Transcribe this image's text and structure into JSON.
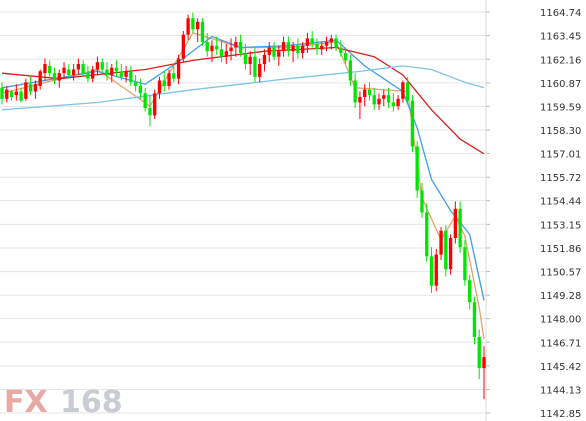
{
  "chart_data": {
    "type": "candlestick",
    "title": "",
    "xlabel": "",
    "ylabel": "",
    "ylim": [
      1142.85,
      1164.74
    ],
    "y_ticks": [
      "1164.74",
      "1163.45",
      "1162.16",
      "1160.87",
      "1159.59",
      "1158.30",
      "1157.01",
      "1155.72",
      "1154.44",
      "1153.15",
      "1151.86",
      "1150.57",
      "1149.28",
      "1148.00",
      "1146.71",
      "1145.42",
      "1144.13",
      "1142.85"
    ],
    "grid": true,
    "legend": "none",
    "colors": {
      "up": "#ff0000",
      "down": "#00e600",
      "ma_fast": "#e8a36b",
      "ma_mid": "#3f9fe8",
      "ma_slow": "#d62020",
      "ma_long": "#7fc4e8"
    },
    "watermark": {
      "fx": "FX",
      "num": "168"
    },
    "candles": [
      [
        1160.6,
        1160.9,
        1159.7,
        1160.0
      ],
      [
        1160.0,
        1160.7,
        1159.8,
        1160.5
      ],
      [
        1160.4,
        1160.5,
        1159.9,
        1160.1
      ],
      [
        1160.2,
        1160.8,
        1159.9,
        1160.4
      ],
      [
        1160.4,
        1160.6,
        1159.8,
        1159.9
      ],
      [
        1160.0,
        1161.1,
        1159.9,
        1160.9
      ],
      [
        1160.8,
        1161.3,
        1160.2,
        1160.4
      ],
      [
        1160.4,
        1161.0,
        1160.0,
        1160.8
      ],
      [
        1160.7,
        1161.6,
        1160.5,
        1161.5
      ],
      [
        1161.4,
        1162.2,
        1161.0,
        1161.9
      ],
      [
        1161.8,
        1162.1,
        1161.2,
        1161.4
      ],
      [
        1161.4,
        1161.7,
        1160.8,
        1161.0
      ],
      [
        1161.0,
        1161.6,
        1160.6,
        1161.4
      ],
      [
        1161.4,
        1162.0,
        1161.1,
        1161.7
      ],
      [
        1161.6,
        1161.9,
        1161.1,
        1161.3
      ],
      [
        1161.3,
        1161.9,
        1161.0,
        1161.6
      ],
      [
        1161.6,
        1162.2,
        1161.3,
        1161.9
      ],
      [
        1161.9,
        1162.1,
        1161.2,
        1161.4
      ],
      [
        1161.4,
        1161.8,
        1160.9,
        1161.1
      ],
      [
        1161.1,
        1161.8,
        1160.9,
        1161.6
      ],
      [
        1161.6,
        1162.3,
        1161.3,
        1162.0
      ],
      [
        1162.0,
        1162.2,
        1161.4,
        1161.6
      ],
      [
        1161.6,
        1162.0,
        1161.0,
        1161.3
      ],
      [
        1161.3,
        1161.9,
        1160.9,
        1161.7
      ],
      [
        1161.7,
        1162.1,
        1161.2,
        1161.5
      ],
      [
        1161.5,
        1161.9,
        1161.0,
        1161.2
      ],
      [
        1161.2,
        1161.8,
        1160.9,
        1161.5
      ],
      [
        1161.5,
        1161.8,
        1160.7,
        1160.9
      ],
      [
        1160.9,
        1161.3,
        1160.4,
        1160.7
      ],
      [
        1160.7,
        1161.1,
        1160.0,
        1160.3
      ],
      [
        1160.3,
        1160.6,
        1159.3,
        1159.5
      ],
      [
        1159.5,
        1160.2,
        1158.5,
        1159.1
      ],
      [
        1159.1,
        1160.5,
        1158.9,
        1160.3
      ],
      [
        1160.3,
        1161.2,
        1160.0,
        1161.0
      ],
      [
        1161.0,
        1161.5,
        1160.4,
        1160.7
      ],
      [
        1160.7,
        1161.6,
        1160.5,
        1161.4
      ],
      [
        1161.4,
        1161.9,
        1160.9,
        1161.1
      ],
      [
        1161.1,
        1162.4,
        1160.8,
        1162.2
      ],
      [
        1162.2,
        1163.7,
        1162.0,
        1163.5
      ],
      [
        1163.5,
        1164.6,
        1163.2,
        1164.4
      ],
      [
        1164.4,
        1164.7,
        1163.6,
        1163.8
      ],
      [
        1163.8,
        1164.4,
        1163.1,
        1164.2
      ],
      [
        1164.2,
        1164.4,
        1162.9,
        1163.1
      ],
      [
        1163.1,
        1163.6,
        1162.3,
        1162.6
      ],
      [
        1162.6,
        1163.2,
        1162.0,
        1162.9
      ],
      [
        1162.9,
        1163.4,
        1162.4,
        1162.7
      ],
      [
        1162.7,
        1163.2,
        1162.0,
        1162.3
      ],
      [
        1162.3,
        1163.0,
        1161.9,
        1162.6
      ],
      [
        1162.6,
        1163.3,
        1162.1,
        1162.8
      ],
      [
        1162.8,
        1163.4,
        1162.3,
        1163.1
      ],
      [
        1163.1,
        1163.5,
        1162.3,
        1162.5
      ],
      [
        1162.5,
        1163.0,
        1161.6,
        1161.9
      ],
      [
        1161.9,
        1162.6,
        1161.3,
        1162.3
      ],
      [
        1162.3,
        1162.8,
        1160.9,
        1161.2
      ],
      [
        1161.2,
        1162.2,
        1160.9,
        1161.9
      ],
      [
        1161.9,
        1162.7,
        1161.5,
        1162.4
      ],
      [
        1162.4,
        1163.1,
        1162.0,
        1162.8
      ],
      [
        1162.8,
        1163.1,
        1162.1,
        1162.3
      ],
      [
        1162.3,
        1162.9,
        1161.8,
        1162.6
      ],
      [
        1162.6,
        1163.4,
        1162.3,
        1163.1
      ],
      [
        1163.1,
        1163.4,
        1162.3,
        1162.6
      ],
      [
        1162.6,
        1163.1,
        1162.0,
        1162.9
      ],
      [
        1162.9,
        1163.3,
        1162.2,
        1162.5
      ],
      [
        1162.5,
        1163.1,
        1162.2,
        1162.9
      ],
      [
        1162.9,
        1163.6,
        1162.5,
        1163.3
      ],
      [
        1163.3,
        1163.7,
        1162.8,
        1163.0
      ],
      [
        1163.0,
        1163.3,
        1162.4,
        1162.7
      ],
      [
        1162.7,
        1163.1,
        1162.4,
        1162.9
      ],
      [
        1162.9,
        1163.4,
        1162.6,
        1163.1
      ],
      [
        1163.1,
        1163.5,
        1162.7,
        1163.3
      ],
      [
        1163.3,
        1163.5,
        1162.6,
        1162.8
      ],
      [
        1162.8,
        1163.2,
        1162.3,
        1162.5
      ],
      [
        1162.5,
        1162.8,
        1161.9,
        1162.1
      ],
      [
        1162.1,
        1162.4,
        1160.7,
        1161.0
      ],
      [
        1161.0,
        1161.4,
        1159.5,
        1159.8
      ],
      [
        1159.8,
        1160.4,
        1158.9,
        1160.1
      ],
      [
        1160.1,
        1160.8,
        1159.6,
        1160.5
      ],
      [
        1160.5,
        1160.9,
        1159.9,
        1160.2
      ],
      [
        1160.2,
        1160.6,
        1159.4,
        1159.7
      ],
      [
        1159.7,
        1160.3,
        1159.4,
        1160.0
      ],
      [
        1160.0,
        1160.5,
        1159.6,
        1160.2
      ],
      [
        1160.2,
        1160.6,
        1159.5,
        1159.8
      ],
      [
        1159.8,
        1160.3,
        1159.3,
        1159.6
      ],
      [
        1159.6,
        1160.2,
        1159.4,
        1160.0
      ],
      [
        1160.0,
        1161.0,
        1159.8,
        1160.9
      ],
      [
        1160.9,
        1161.2,
        1159.7,
        1159.9
      ],
      [
        1159.9,
        1160.2,
        1157.1,
        1157.4
      ],
      [
        1157.4,
        1157.7,
        1154.6,
        1155.0
      ],
      [
        1155.0,
        1155.4,
        1153.5,
        1153.8
      ],
      [
        1153.8,
        1154.3,
        1151.1,
        1151.4
      ],
      [
        1151.4,
        1151.9,
        1149.4,
        1149.8
      ],
      [
        1149.8,
        1151.8,
        1149.5,
        1151.5
      ],
      [
        1151.5,
        1153.0,
        1151.2,
        1152.8
      ],
      [
        1152.8,
        1153.1,
        1150.3,
        1150.7
      ],
      [
        1150.7,
        1152.6,
        1150.4,
        1152.4
      ],
      [
        1152.4,
        1154.4,
        1152.1,
        1154.0
      ],
      [
        1154.0,
        1154.4,
        1151.6,
        1151.9
      ],
      [
        1151.9,
        1152.3,
        1149.8,
        1150.1
      ],
      [
        1150.1,
        1150.4,
        1148.5,
        1148.9
      ],
      [
        1148.9,
        1149.2,
        1146.6,
        1147.0
      ],
      [
        1147.0,
        1147.4,
        1144.7,
        1145.3
      ],
      [
        1145.3,
        1146.5,
        1143.6,
        1145.9
      ]
    ],
    "series": [
      {
        "key": "ma_fast",
        "values": [
          [
            0,
            1160.3
          ],
          [
            20,
            1161.6
          ],
          [
            31,
            1159.6
          ],
          [
            40,
            1163.6
          ],
          [
            50,
            1162.8
          ],
          [
            60,
            1162.8
          ],
          [
            70,
            1163.1
          ],
          [
            74,
            1160.6
          ],
          [
            85,
            1160.4
          ],
          [
            88,
            1154.6
          ],
          [
            92,
            1152.3
          ],
          [
            95,
            1153.6
          ],
          [
            97,
            1152.5
          ],
          [
            100,
            1148.6
          ],
          [
            101,
            1146.9
          ]
        ]
      },
      {
        "key": "ma_mid",
        "values": [
          [
            0,
            1160.6
          ],
          [
            20,
            1161.5
          ],
          [
            30,
            1160.8
          ],
          [
            38,
            1162.2
          ],
          [
            44,
            1163.4
          ],
          [
            50,
            1162.8
          ],
          [
            60,
            1162.9
          ],
          [
            70,
            1163.2
          ],
          [
            76,
            1161.8
          ],
          [
            84,
            1160.4
          ],
          [
            87,
            1158.4
          ],
          [
            90,
            1155.6
          ],
          [
            94,
            1153.9
          ],
          [
            98,
            1152.6
          ],
          [
            101,
            1149.0
          ]
        ]
      },
      {
        "key": "ma_slow",
        "values": [
          [
            0,
            1161.4
          ],
          [
            12,
            1161.1
          ],
          [
            30,
            1161.6
          ],
          [
            40,
            1162.1
          ],
          [
            55,
            1162.6
          ],
          [
            70,
            1162.8
          ],
          [
            78,
            1162.3
          ],
          [
            84,
            1161.3
          ],
          [
            90,
            1159.4
          ],
          [
            96,
            1157.8
          ],
          [
            101,
            1157.0
          ]
        ]
      },
      {
        "key": "ma_long",
        "values": [
          [
            0,
            1159.4
          ],
          [
            20,
            1159.8
          ],
          [
            40,
            1160.5
          ],
          [
            60,
            1161.1
          ],
          [
            75,
            1161.5
          ],
          [
            84,
            1161.8
          ],
          [
            90,
            1161.6
          ],
          [
            97,
            1160.9
          ],
          [
            101,
            1160.6
          ]
        ]
      }
    ]
  }
}
